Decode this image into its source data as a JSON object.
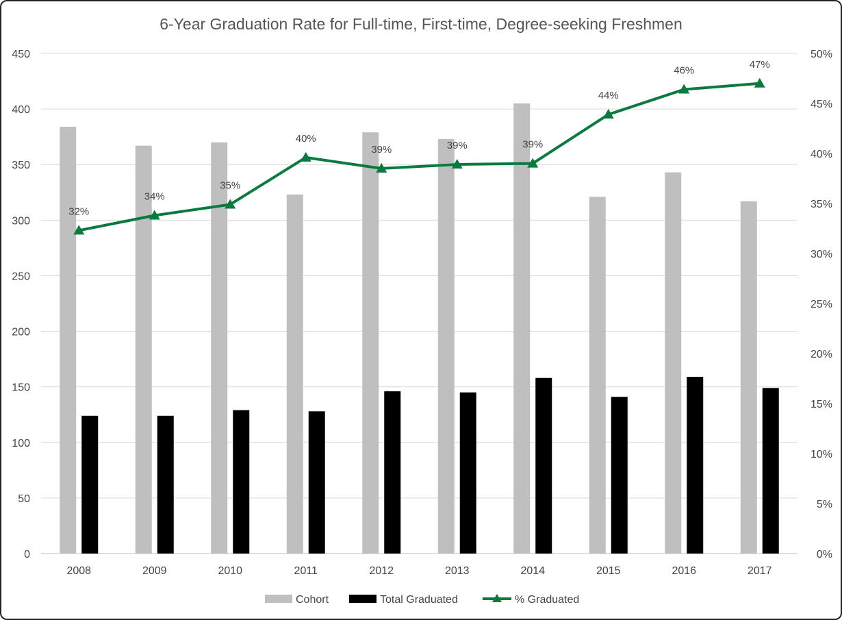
{
  "chart_data": {
    "type": "bar",
    "title": "6-Year Graduation Rate for Full-time, First-time, Degree-seeking Freshmen",
    "categories": [
      "2008",
      "2009",
      "2010",
      "2011",
      "2012",
      "2013",
      "2014",
      "2015",
      "2016",
      "2017"
    ],
    "series": [
      {
        "name": "Cohort",
        "type": "bar",
        "axis": "left",
        "color": "#bfbfbf",
        "values": [
          384,
          367,
          370,
          323,
          379,
          373,
          405,
          321,
          343,
          317
        ]
      },
      {
        "name": "Total Graduated",
        "type": "bar",
        "axis": "left",
        "color": "#000000",
        "values": [
          124,
          124,
          129,
          128,
          146,
          145,
          158,
          141,
          159,
          149
        ]
      },
      {
        "name": "% Graduated",
        "type": "line",
        "axis": "right",
        "color": "#0b7a3e",
        "marker": "triangle",
        "values": [
          32.3,
          33.8,
          34.9,
          39.6,
          38.5,
          38.9,
          39.0,
          43.9,
          46.4,
          47.0
        ],
        "labels": [
          "32%",
          "34%",
          "35%",
          "40%",
          "39%",
          "39%",
          "39%",
          "44%",
          "46%",
          "47%"
        ]
      }
    ],
    "y_left": {
      "ylim": [
        0,
        450
      ],
      "ticks": [
        "0",
        "50",
        "100",
        "150",
        "200",
        "250",
        "300",
        "350",
        "400",
        "450"
      ]
    },
    "y_right": {
      "ylim": [
        0,
        50
      ],
      "ticks": [
        "0%",
        "5%",
        "10%",
        "15%",
        "20%",
        "25%",
        "30%",
        "35%",
        "40%",
        "45%",
        "50%"
      ]
    },
    "grid": true,
    "legend_position": "bottom"
  }
}
